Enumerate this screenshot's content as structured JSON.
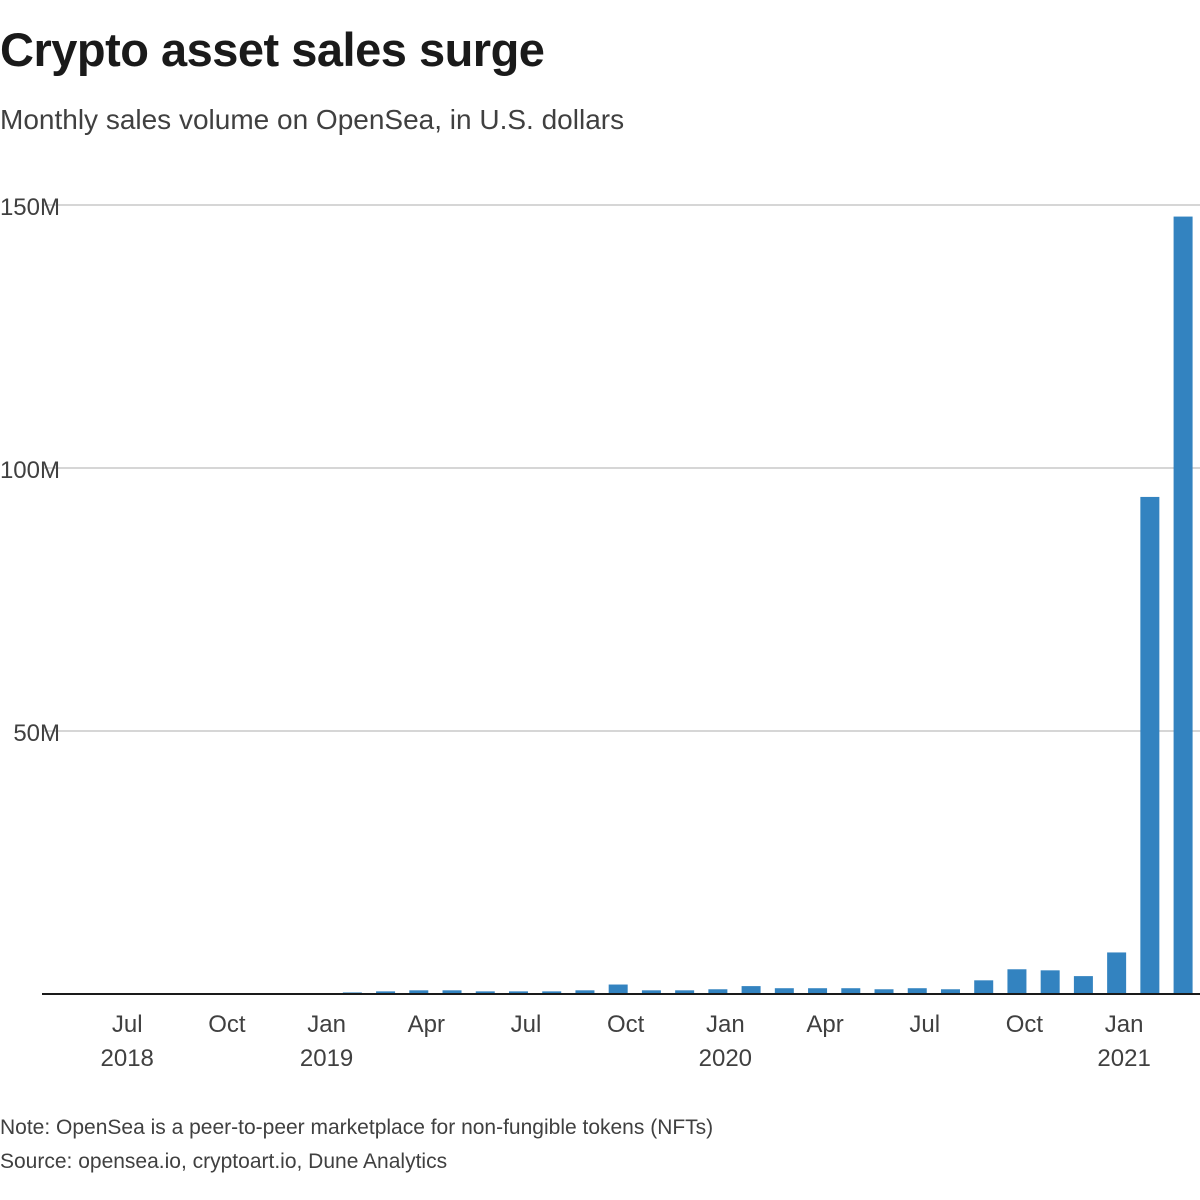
{
  "chart_data": {
    "type": "bar",
    "title": "Crypto asset sales surge",
    "subtitle": "Monthly sales volume on OpenSea, in U.S. dollars",
    "xlabel": "",
    "ylabel": "",
    "ylim": [
      0,
      150000000
    ],
    "grid": true,
    "y_ticks": [
      {
        "value": 50000000,
        "label": "50M"
      },
      {
        "value": 100000000,
        "label": "100M"
      },
      {
        "value": 150000000,
        "label": "150M"
      }
    ],
    "x_ticks": [
      {
        "month": "2018-07",
        "label": "Jul",
        "year": "2018"
      },
      {
        "month": "2018-10",
        "label": "Oct",
        "year": ""
      },
      {
        "month": "2019-01",
        "label": "Jan",
        "year": "2019"
      },
      {
        "month": "2019-04",
        "label": "Apr",
        "year": ""
      },
      {
        "month": "2019-07",
        "label": "Jul",
        "year": ""
      },
      {
        "month": "2019-10",
        "label": "Oct",
        "year": ""
      },
      {
        "month": "2020-01",
        "label": "Jan",
        "year": "2020"
      },
      {
        "month": "2020-04",
        "label": "Apr",
        "year": ""
      },
      {
        "month": "2020-07",
        "label": "Jul",
        "year": ""
      },
      {
        "month": "2020-10",
        "label": "Oct",
        "year": ""
      },
      {
        "month": "2021-01",
        "label": "Jan",
        "year": "2021"
      }
    ],
    "categories": [
      "2018-06",
      "2018-07",
      "2018-08",
      "2018-09",
      "2018-10",
      "2018-11",
      "2018-12",
      "2019-01",
      "2019-02",
      "2019-03",
      "2019-04",
      "2019-05",
      "2019-06",
      "2019-07",
      "2019-08",
      "2019-09",
      "2019-10",
      "2019-11",
      "2019-12",
      "2020-01",
      "2020-02",
      "2020-03",
      "2020-04",
      "2020-05",
      "2020-06",
      "2020-07",
      "2020-08",
      "2020-09",
      "2020-10",
      "2020-11",
      "2020-12",
      "2021-01",
      "2021-02",
      "2021-03"
    ],
    "values": [
      0,
      0,
      0,
      0,
      0,
      0,
      0,
      50000,
      300000,
      500000,
      700000,
      700000,
      500000,
      500000,
      500000,
      700000,
      1800000,
      700000,
      700000,
      900000,
      1500000,
      1100000,
      1100000,
      1100000,
      900000,
      1100000,
      900000,
      2600000,
      4700000,
      4500000,
      3400000,
      7900000,
      94500000,
      147800000
    ],
    "bar_color": "#3383c0",
    "grid_color": "#c8c8c8",
    "axis_color": "#1a1a1a"
  },
  "footer": {
    "note": "Note: OpenSea is a peer-to-peer marketplace for non-fungible tokens (NFTs)",
    "source": "Source: opensea.io, cryptoart.io, Dune Analytics"
  }
}
